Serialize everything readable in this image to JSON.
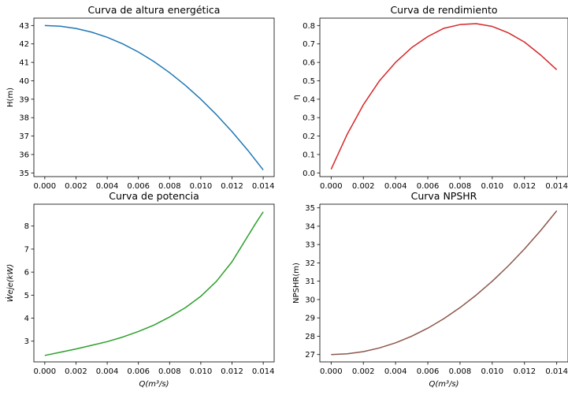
{
  "chart_data": [
    {
      "type": "line",
      "title": "Curva de altura energética",
      "xlabel": "",
      "ylabel": "H(m)",
      "xlim": [
        -0.0007,
        0.0147
      ],
      "ylim": [
        34.8,
        43.4
      ],
      "xticks": [
        0.0,
        0.002,
        0.004,
        0.006,
        0.008,
        0.01,
        0.012,
        0.014
      ],
      "xticklabels": [
        "0.000",
        "0.002",
        "0.004",
        "0.006",
        "0.008",
        "0.010",
        "0.012",
        "0.014"
      ],
      "yticks": [
        35,
        36,
        37,
        38,
        39,
        40,
        41,
        42,
        43
      ],
      "yticklabels": [
        "35",
        "36",
        "37",
        "38",
        "39",
        "40",
        "41",
        "42",
        "43"
      ],
      "color": "#1f77b4",
      "x": [
        0.0,
        0.001,
        0.002,
        0.003,
        0.004,
        0.005,
        0.006,
        0.007,
        0.008,
        0.009,
        0.01,
        0.011,
        0.012,
        0.013,
        0.014
      ],
      "y": [
        43.0,
        42.96,
        42.84,
        42.64,
        42.36,
        42.0,
        41.56,
        41.04,
        40.44,
        39.76,
        39.0,
        38.16,
        37.24,
        36.24,
        35.16
      ]
    },
    {
      "type": "line",
      "title": "Curva de rendimiento",
      "xlabel": "",
      "ylabel": "η",
      "xlim": [
        -0.0007,
        0.0147
      ],
      "ylim": [
        -0.02,
        0.84
      ],
      "xticks": [
        0.0,
        0.002,
        0.004,
        0.006,
        0.008,
        0.01,
        0.012,
        0.014
      ],
      "xticklabels": [
        "0.000",
        "0.002",
        "0.004",
        "0.006",
        "0.008",
        "0.010",
        "0.012",
        "0.014"
      ],
      "yticks": [
        0.0,
        0.1,
        0.2,
        0.3,
        0.4,
        0.5,
        0.6,
        0.7,
        0.8
      ],
      "yticklabels": [
        "0.0",
        "0.1",
        "0.2",
        "0.3",
        "0.4",
        "0.5",
        "0.6",
        "0.7",
        "0.8"
      ],
      "color": "#d62728",
      "x": [
        0.0,
        0.001,
        0.002,
        0.003,
        0.004,
        0.005,
        0.006,
        0.007,
        0.008,
        0.009,
        0.01,
        0.011,
        0.012,
        0.013,
        0.014
      ],
      "y": [
        0.02,
        0.21,
        0.37,
        0.5,
        0.6,
        0.68,
        0.74,
        0.785,
        0.805,
        0.81,
        0.795,
        0.76,
        0.71,
        0.64,
        0.56
      ]
    },
    {
      "type": "line",
      "title": "Curva de potencia",
      "xlabel": "Q(m³/s)",
      "ylabel": "Ẇeje(kW)",
      "xlim": [
        -0.0007,
        0.0147
      ],
      "ylim": [
        2.1,
        8.95
      ],
      "xticks": [
        0.0,
        0.002,
        0.004,
        0.006,
        0.008,
        0.01,
        0.012,
        0.014
      ],
      "xticklabels": [
        "0.000",
        "0.002",
        "0.004",
        "0.006",
        "0.008",
        "0.010",
        "0.012",
        "0.014"
      ],
      "yticks": [
        3,
        4,
        5,
        6,
        7,
        8
      ],
      "yticklabels": [
        "3",
        "4",
        "5",
        "6",
        "7",
        "8"
      ],
      "color": "#2ca02c",
      "x": [
        0.0,
        0.001,
        0.002,
        0.003,
        0.004,
        0.005,
        0.006,
        0.007,
        0.008,
        0.009,
        0.01,
        0.011,
        0.012,
        0.0125,
        0.013,
        0.0135,
        0.014
      ],
      "y": [
        2.38,
        2.52,
        2.66,
        2.82,
        2.98,
        3.18,
        3.42,
        3.7,
        4.05,
        4.45,
        4.95,
        5.6,
        6.45,
        7.0,
        7.55,
        8.1,
        8.62
      ]
    },
    {
      "type": "line",
      "title": "Curva NPSHR",
      "xlabel": "Q(m³/s)",
      "ylabel": "NPSHR(m)",
      "xlim": [
        -0.0007,
        0.0147
      ],
      "ylim": [
        26.6,
        35.2
      ],
      "xticks": [
        0.0,
        0.002,
        0.004,
        0.006,
        0.008,
        0.01,
        0.012,
        0.014
      ],
      "xticklabels": [
        "0.000",
        "0.002",
        "0.004",
        "0.006",
        "0.008",
        "0.010",
        "0.012",
        "0.014"
      ],
      "yticks": [
        27,
        28,
        29,
        30,
        31,
        32,
        33,
        34,
        35
      ],
      "yticklabels": [
        "27",
        "28",
        "29",
        "30",
        "31",
        "32",
        "33",
        "34",
        "35"
      ],
      "color": "#8c564b",
      "x": [
        0.0,
        0.001,
        0.002,
        0.003,
        0.004,
        0.005,
        0.006,
        0.007,
        0.008,
        0.009,
        0.01,
        0.011,
        0.012,
        0.013,
        0.014
      ],
      "y": [
        27.0,
        27.04,
        27.16,
        27.36,
        27.64,
        28.0,
        28.44,
        28.96,
        29.56,
        30.24,
        31.0,
        31.84,
        32.76,
        33.76,
        34.84
      ]
    }
  ]
}
